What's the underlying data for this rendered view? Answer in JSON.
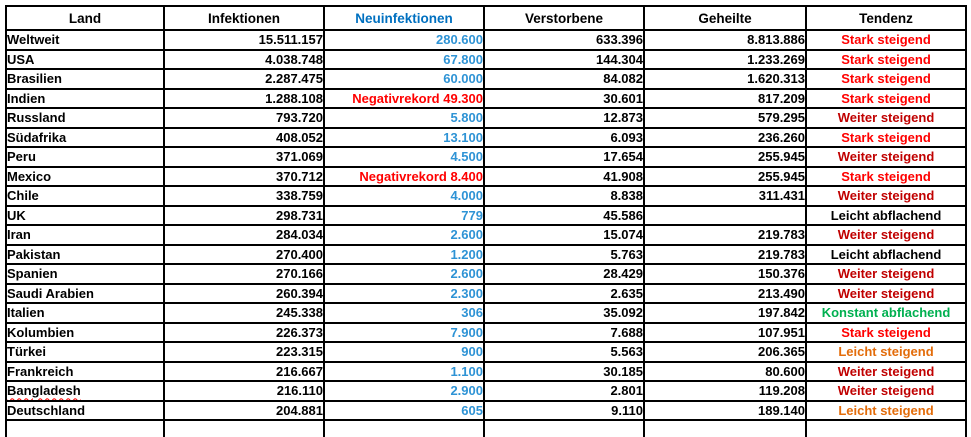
{
  "table": {
    "columns": [
      {
        "key": "land",
        "label": "Land"
      },
      {
        "key": "infektionen",
        "label": "Infektionen"
      },
      {
        "key": "neuinfektionen",
        "label": "Neuinfektionen"
      },
      {
        "key": "verstorbene",
        "label": "Verstorbene"
      },
      {
        "key": "geheilte",
        "label": "Geheilte"
      },
      {
        "key": "tendenz",
        "label": "Tendenz"
      }
    ],
    "rows": [
      {
        "land": "Weltweit",
        "infektionen": "15.511.157",
        "neuinfektionen": "280.600",
        "neu_style": "normal",
        "verstorbene": "633.396",
        "geheilte": "8.813.886",
        "tendenz": "Stark steigend",
        "trend_style": "stark_steigend",
        "misspelled": false
      },
      {
        "land": "USA",
        "infektionen": "4.038.748",
        "neuinfektionen": "67.800",
        "neu_style": "normal",
        "verstorbene": "144.304",
        "geheilte": "1.233.269",
        "tendenz": "Stark steigend",
        "trend_style": "stark_steigend",
        "misspelled": false
      },
      {
        "land": "Brasilien",
        "infektionen": "2.287.475",
        "neuinfektionen": "60.000",
        "neu_style": "normal",
        "verstorbene": "84.082",
        "geheilte": "1.620.313",
        "tendenz": "Stark steigend",
        "trend_style": "stark_steigend",
        "misspelled": false
      },
      {
        "land": "Indien",
        "infektionen": "1.288.108",
        "neuinfektionen": "Negativrekord 49.300",
        "neu_style": "negativrekord",
        "verstorbene": "30.601",
        "geheilte": "817.209",
        "tendenz": "Stark steigend",
        "trend_style": "stark_steigend",
        "misspelled": false
      },
      {
        "land": "Russland",
        "infektionen": "793.720",
        "neuinfektionen": "5.800",
        "neu_style": "normal",
        "verstorbene": "12.873",
        "geheilte": "579.295",
        "tendenz": "Weiter steigend",
        "trend_style": "weiter_steigend",
        "misspelled": false
      },
      {
        "land": "Südafrika",
        "infektionen": "408.052",
        "neuinfektionen": "13.100",
        "neu_style": "normal",
        "verstorbene": "6.093",
        "geheilte": "236.260",
        "tendenz": "Stark steigend",
        "trend_style": "stark_steigend",
        "misspelled": false
      },
      {
        "land": "Peru",
        "infektionen": "371.069",
        "neuinfektionen": "4.500",
        "neu_style": "normal",
        "verstorbene": "17.654",
        "geheilte": "255.945",
        "tendenz": "Weiter steigend",
        "trend_style": "weiter_steigend",
        "misspelled": false
      },
      {
        "land": "Mexico",
        "infektionen": "370.712",
        "neuinfektionen": "Negativrekord 8.400",
        "neu_style": "negativrekord",
        "verstorbene": "41.908",
        "geheilte": "255.945",
        "tendenz": "Stark steigend",
        "trend_style": "stark_steigend",
        "misspelled": false
      },
      {
        "land": "Chile",
        "infektionen": "338.759",
        "neuinfektionen": "4.000",
        "neu_style": "normal",
        "verstorbene": "8.838",
        "geheilte": "311.431",
        "tendenz": "Weiter steigend",
        "trend_style": "weiter_steigend",
        "misspelled": false
      },
      {
        "land": "UK",
        "infektionen": "298.731",
        "neuinfektionen": "779",
        "neu_style": "normal",
        "verstorbene": "45.586",
        "geheilte": "",
        "tendenz": "Leicht abflachend",
        "trend_style": "leicht_abflachend",
        "misspelled": false
      },
      {
        "land": "Iran",
        "infektionen": "284.034",
        "neuinfektionen": "2.600",
        "neu_style": "normal",
        "verstorbene": "15.074",
        "geheilte": "219.783",
        "tendenz": "Weiter steigend",
        "trend_style": "weiter_steigend",
        "misspelled": false
      },
      {
        "land": "Pakistan",
        "infektionen": "270.400",
        "neuinfektionen": "1.200",
        "neu_style": "normal",
        "verstorbene": "5.763",
        "geheilte": "219.783",
        "tendenz": "Leicht abflachend",
        "trend_style": "leicht_abflachend",
        "misspelled": false
      },
      {
        "land": "Spanien",
        "infektionen": "270.166",
        "neuinfektionen": "2.600",
        "neu_style": "normal",
        "verstorbene": "28.429",
        "geheilte": "150.376",
        "tendenz": "Weiter steigend",
        "trend_style": "weiter_steigend",
        "misspelled": false
      },
      {
        "land": "Saudi Arabien",
        "infektionen": "260.394",
        "neuinfektionen": "2.300",
        "neu_style": "normal",
        "verstorbene": "2.635",
        "geheilte": "213.490",
        "tendenz": "Weiter steigend",
        "trend_style": "weiter_steigend",
        "misspelled": false
      },
      {
        "land": "Italien",
        "infektionen": "245.338",
        "neuinfektionen": "306",
        "neu_style": "normal",
        "verstorbene": "35.092",
        "geheilte": "197.842",
        "tendenz": "Konstant abflachend",
        "trend_style": "konstant_abflachend",
        "misspelled": false
      },
      {
        "land": "Kolumbien",
        "infektionen": "226.373",
        "neuinfektionen": "7.900",
        "neu_style": "normal",
        "verstorbene": "7.688",
        "geheilte": "107.951",
        "tendenz": "Stark steigend",
        "trend_style": "stark_steigend",
        "misspelled": false
      },
      {
        "land": "Türkei",
        "infektionen": "223.315",
        "neuinfektionen": "900",
        "neu_style": "normal",
        "verstorbene": "5.563",
        "geheilte": "206.365",
        "tendenz": "Leicht steigend",
        "trend_style": "leicht_steigend",
        "misspelled": false
      },
      {
        "land": "Frankreich",
        "infektionen": "216.667",
        "neuinfektionen": "1.100",
        "neu_style": "normal",
        "verstorbene": "30.185",
        "geheilte": "80.600",
        "tendenz": "Weiter steigend",
        "trend_style": "weiter_steigend",
        "misspelled": false
      },
      {
        "land": "Bangladesh",
        "infektionen": "216.110",
        "neuinfektionen": "2.900",
        "neu_style": "normal",
        "verstorbene": "2.801",
        "geheilte": "119.208",
        "tendenz": "Weiter steigend",
        "trend_style": "weiter_steigend",
        "misspelled": true
      },
      {
        "land": "Deutschland",
        "infektionen": "204.881",
        "neuinfektionen": "605",
        "neu_style": "normal",
        "verstorbene": "9.110",
        "geheilte": "189.140",
        "tendenz": "Leicht steigend",
        "trend_style": "leicht_steigend",
        "misspelled": false
      }
    ]
  },
  "colors": {
    "neuinfektionen_header": "#0070C0",
    "neuinfektionen_value": "#2E93D5",
    "negativrekord": "#FF0000",
    "stark_steigend": "#FF0000",
    "weiter_steigend": "#C00000",
    "leicht_steigend": "#E36C0A",
    "konstant_abflachend": "#00B050",
    "leicht_abflachend": "#000000",
    "border": "#000000",
    "text": "#000000",
    "background": "#FFFFFF"
  }
}
